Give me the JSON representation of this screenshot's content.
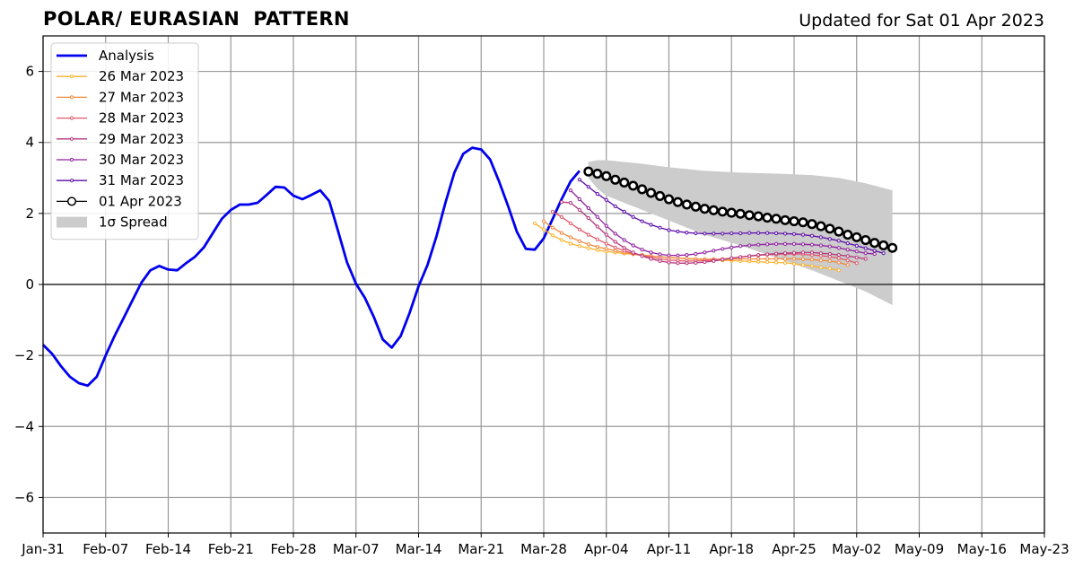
{
  "header": {
    "title": "POLAR/ EURASIAN  PATTERN",
    "updated": "Updated for Sat 01 Apr 2023"
  },
  "chart_data": {
    "type": "line",
    "title": "POLAR/ EURASIAN  PATTERN",
    "subtitle": "Updated for Sat 01 Apr 2023",
    "xlabel": "",
    "ylabel": "",
    "x_unit": "days since Jan-31",
    "xlim": [
      0,
      112
    ],
    "ylim": [
      -7,
      7
    ],
    "grid": true,
    "legend_position": "top-left",
    "x_ticks": [
      {
        "x": 0,
        "label": "Jan-31"
      },
      {
        "x": 7,
        "label": "Feb-07"
      },
      {
        "x": 14,
        "label": "Feb-14"
      },
      {
        "x": 21,
        "label": "Feb-21"
      },
      {
        "x": 28,
        "label": "Feb-28"
      },
      {
        "x": 35,
        "label": "Mar-07"
      },
      {
        "x": 42,
        "label": "Mar-14"
      },
      {
        "x": 49,
        "label": "Mar-21"
      },
      {
        "x": 56,
        "label": "Mar-28"
      },
      {
        "x": 63,
        "label": "Apr-04"
      },
      {
        "x": 70,
        "label": "Apr-11"
      },
      {
        "x": 77,
        "label": "Apr-18"
      },
      {
        "x": 84,
        "label": "Apr-25"
      },
      {
        "x": 91,
        "label": "May-02"
      },
      {
        "x": 98,
        "label": "May-09"
      },
      {
        "x": 105,
        "label": "May-16"
      },
      {
        "x": 112,
        "label": "May-23"
      }
    ],
    "y_ticks": [
      {
        "y": 6,
        "label": "6"
      },
      {
        "y": 4,
        "label": "4"
      },
      {
        "y": 2,
        "label": "2"
      },
      {
        "y": 0,
        "label": "0"
      },
      {
        "y": -2,
        "label": "−2"
      },
      {
        "y": -4,
        "label": "−4"
      },
      {
        "y": -6,
        "label": "−6"
      }
    ],
    "spread": {
      "name": "1σ Spread",
      "color": "#cccccc",
      "x": [
        61,
        62,
        63,
        65,
        67,
        70,
        74,
        78,
        82,
        86,
        89,
        92,
        95
      ],
      "upper": [
        3.45,
        3.5,
        3.5,
        3.45,
        3.4,
        3.3,
        3.2,
        3.15,
        3.12,
        3.08,
        3.0,
        2.85,
        2.65
      ],
      "lower": [
        3.0,
        2.7,
        2.5,
        2.3,
        2.1,
        1.8,
        1.4,
        1.1,
        0.75,
        0.4,
        0.1,
        -0.2,
        -0.58
      ]
    },
    "series": [
      {
        "name": "Analysis",
        "color": "#0000ee",
        "marker": "none",
        "x": [
          0,
          1,
          2,
          3,
          4,
          5,
          6,
          7,
          8,
          9,
          10,
          11,
          12,
          13,
          14,
          15,
          16,
          17,
          18,
          19,
          20,
          21,
          22,
          23,
          24,
          25,
          26,
          27,
          28,
          29,
          30,
          31,
          32,
          33,
          34,
          35,
          36,
          37,
          38,
          39,
          40,
          41,
          42,
          43,
          44,
          45,
          46,
          47,
          48,
          49,
          50,
          51,
          52,
          53,
          54,
          55,
          56,
          57,
          58,
          59,
          60
        ],
        "values": [
          -1.7,
          -1.95,
          -2.3,
          -2.6,
          -2.78,
          -2.85,
          -2.6,
          -2.0,
          -1.45,
          -0.95,
          -0.45,
          0.05,
          0.4,
          0.52,
          0.42,
          0.4,
          0.6,
          0.78,
          1.05,
          1.45,
          1.85,
          2.1,
          2.25,
          2.25,
          2.3,
          2.52,
          2.75,
          2.73,
          2.5,
          2.4,
          2.52,
          2.65,
          2.35,
          1.5,
          0.62,
          0.02,
          -0.38,
          -0.92,
          -1.55,
          -1.78,
          -1.45,
          -0.8,
          -0.05,
          0.55,
          1.35,
          2.3,
          3.15,
          3.68,
          3.85,
          3.8,
          3.52,
          2.9,
          2.22,
          1.48,
          1.0,
          0.98,
          1.3,
          1.85,
          2.4,
          2.9,
          3.2
        ]
      },
      {
        "name": "26 Mar 2023",
        "color": "#fbb32e",
        "marker": "dot",
        "x": [
          55,
          56,
          57,
          58,
          59,
          60,
          61,
          62,
          63,
          64,
          65,
          66,
          67,
          68,
          69,
          70,
          71,
          72,
          73,
          74,
          75,
          76,
          77,
          78,
          79,
          80,
          81,
          82,
          83,
          84,
          85,
          86,
          87,
          88,
          89
        ],
        "values": [
          1.72,
          1.55,
          1.38,
          1.25,
          1.15,
          1.08,
          1.02,
          0.97,
          0.93,
          0.9,
          0.87,
          0.85,
          0.82,
          0.8,
          0.78,
          0.76,
          0.74,
          0.72,
          0.71,
          0.7,
          0.69,
          0.68,
          0.67,
          0.66,
          0.65,
          0.64,
          0.63,
          0.62,
          0.61,
          0.58,
          0.55,
          0.52,
          0.48,
          0.45,
          0.4
        ]
      },
      {
        "name": "27 Mar 2023",
        "color": "#f3883b",
        "marker": "dot",
        "x": [
          56,
          57,
          58,
          59,
          60,
          61,
          62,
          63,
          64,
          65,
          66,
          67,
          68,
          69,
          70,
          71,
          72,
          73,
          74,
          75,
          76,
          77,
          78,
          79,
          80,
          81,
          82,
          83,
          84,
          85,
          86,
          87,
          88,
          89,
          90
        ],
        "values": [
          1.78,
          1.6,
          1.45,
          1.33,
          1.22,
          1.13,
          1.06,
          1.0,
          0.95,
          0.9,
          0.86,
          0.83,
          0.8,
          0.78,
          0.76,
          0.74,
          0.73,
          0.72,
          0.71,
          0.71,
          0.71,
          0.71,
          0.72,
          0.72,
          0.72,
          0.72,
          0.72,
          0.72,
          0.72,
          0.71,
          0.7,
          0.68,
          0.66,
          0.62,
          0.55
        ]
      },
      {
        "name": "28 Mar 2023",
        "color": "#e3576a",
        "marker": "dot",
        "x": [
          57,
          58,
          59,
          60,
          61,
          62,
          63,
          64,
          65,
          66,
          67,
          68,
          69,
          70,
          71,
          72,
          73,
          74,
          75,
          76,
          77,
          78,
          79,
          80,
          81,
          82,
          83,
          84,
          85,
          86,
          87,
          88,
          89,
          90,
          91
        ],
        "values": [
          2.05,
          1.9,
          1.72,
          1.55,
          1.4,
          1.27,
          1.15,
          1.04,
          0.95,
          0.87,
          0.81,
          0.76,
          0.72,
          0.69,
          0.67,
          0.66,
          0.66,
          0.67,
          0.69,
          0.71,
          0.74,
          0.77,
          0.8,
          0.82,
          0.84,
          0.85,
          0.86,
          0.86,
          0.85,
          0.83,
          0.81,
          0.78,
          0.74,
          0.68,
          0.6
        ]
      },
      {
        "name": "29 Mar 2023",
        "color": "#b5367a",
        "marker": "dot",
        "x": [
          58,
          59,
          60,
          61,
          62,
          63,
          64,
          65,
          66,
          67,
          68,
          69,
          70,
          71,
          72,
          73,
          74,
          75,
          76,
          77,
          78,
          79,
          80,
          81,
          82,
          83,
          84,
          85,
          86,
          87,
          88,
          89,
          90,
          91,
          92
        ],
        "values": [
          2.32,
          2.3,
          2.1,
          1.87,
          1.63,
          1.4,
          1.2,
          1.03,
          0.9,
          0.8,
          0.72,
          0.66,
          0.62,
          0.6,
          0.6,
          0.61,
          0.63,
          0.66,
          0.7,
          0.74,
          0.77,
          0.8,
          0.83,
          0.85,
          0.87,
          0.88,
          0.89,
          0.9,
          0.9,
          0.88,
          0.86,
          0.83,
          0.8,
          0.76,
          0.72
        ]
      },
      {
        "name": "30 Mar 2023",
        "color": "#8f1fa1",
        "marker": "dot",
        "x": [
          59,
          60,
          61,
          62,
          63,
          64,
          65,
          66,
          67,
          68,
          69,
          70,
          71,
          72,
          73,
          74,
          75,
          76,
          77,
          78,
          79,
          80,
          81,
          82,
          83,
          84,
          85,
          86,
          87,
          88,
          89,
          90,
          91,
          92,
          93
        ],
        "values": [
          2.65,
          2.4,
          2.15,
          1.9,
          1.65,
          1.43,
          1.25,
          1.1,
          0.98,
          0.9,
          0.85,
          0.82,
          0.82,
          0.83,
          0.86,
          0.9,
          0.95,
          1.0,
          1.04,
          1.08,
          1.1,
          1.12,
          1.13,
          1.14,
          1.14,
          1.14,
          1.13,
          1.12,
          1.1,
          1.07,
          1.03,
          0.98,
          0.93,
          0.88,
          0.86
        ]
      },
      {
        "name": "31 Mar 2023",
        "color": "#5a0bab",
        "marker": "dot",
        "x": [
          60,
          61,
          62,
          63,
          64,
          65,
          66,
          67,
          68,
          69,
          70,
          71,
          72,
          73,
          74,
          75,
          76,
          77,
          78,
          79,
          80,
          81,
          82,
          83,
          84,
          85,
          86,
          87,
          88,
          89,
          90,
          91,
          92,
          93,
          94
        ],
        "values": [
          2.95,
          2.75,
          2.55,
          2.38,
          2.2,
          2.05,
          1.9,
          1.78,
          1.68,
          1.6,
          1.53,
          1.49,
          1.46,
          1.44,
          1.43,
          1.43,
          1.43,
          1.44,
          1.44,
          1.45,
          1.45,
          1.45,
          1.44,
          1.43,
          1.42,
          1.4,
          1.37,
          1.33,
          1.28,
          1.23,
          1.16,
          1.09,
          1.02,
          0.95,
          0.88
        ]
      },
      {
        "name": "01 Apr 2023",
        "color": "#000000",
        "marker": "circle",
        "x": [
          61,
          62,
          63,
          64,
          65,
          66,
          67,
          68,
          69,
          70,
          71,
          72,
          73,
          74,
          75,
          76,
          77,
          78,
          79,
          80,
          81,
          82,
          83,
          84,
          85,
          86,
          87,
          88,
          89,
          90,
          91,
          92,
          93,
          94,
          95
        ],
        "values": [
          3.18,
          3.12,
          3.05,
          2.95,
          2.87,
          2.78,
          2.68,
          2.58,
          2.49,
          2.4,
          2.32,
          2.25,
          2.19,
          2.13,
          2.09,
          2.05,
          2.02,
          1.99,
          1.95,
          1.92,
          1.88,
          1.85,
          1.81,
          1.78,
          1.75,
          1.7,
          1.64,
          1.57,
          1.49,
          1.4,
          1.33,
          1.25,
          1.17,
          1.1,
          1.03
        ]
      }
    ]
  }
}
